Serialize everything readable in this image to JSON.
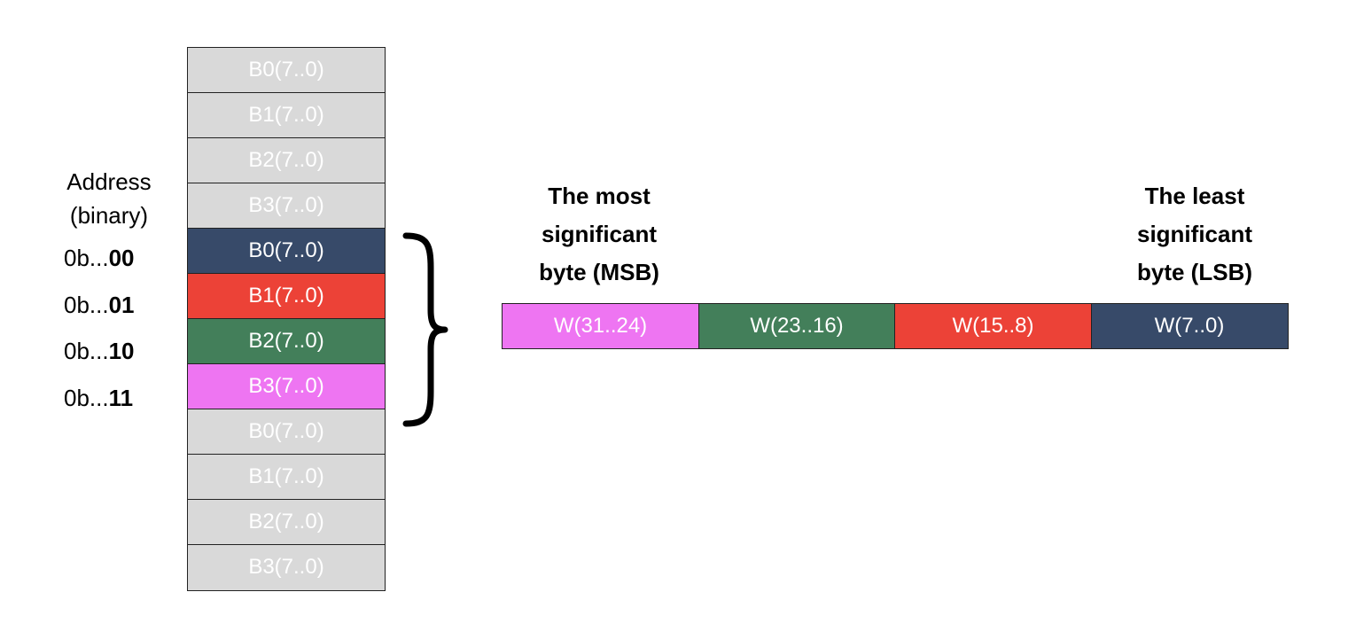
{
  "address": {
    "header_line1": "Address",
    "header_line2": "(binary)",
    "rows": [
      {
        "prefix": "0b...",
        "bits": "00"
      },
      {
        "prefix": "0b...",
        "bits": "01"
      },
      {
        "prefix": "0b...",
        "bits": "10"
      },
      {
        "prefix": "0b...",
        "bits": "11"
      }
    ]
  },
  "memory": {
    "cells": [
      {
        "label": "B0(7..0)",
        "color": "#d9d9d9"
      },
      {
        "label": "B1(7..0)",
        "color": "#d9d9d9"
      },
      {
        "label": "B2(7..0)",
        "color": "#d9d9d9"
      },
      {
        "label": "B3(7..0)",
        "color": "#d9d9d9"
      },
      {
        "label": "B0(7..0)",
        "color": "#374a69"
      },
      {
        "label": "B1(7..0)",
        "color": "#ec4237"
      },
      {
        "label": "B2(7..0)",
        "color": "#437f5a"
      },
      {
        "label": "B3(7..0)",
        "color": "#ee75f2"
      },
      {
        "label": "B0(7..0)",
        "color": "#d9d9d9"
      },
      {
        "label": "B1(7..0)",
        "color": "#d9d9d9"
      },
      {
        "label": "B2(7..0)",
        "color": "#d9d9d9"
      },
      {
        "label": "B3(7..0)",
        "color": "#d9d9d9"
      }
    ]
  },
  "word": {
    "cells": [
      {
        "label": "W(31..24)",
        "color": "#ee75f2"
      },
      {
        "label": "W(23..16)",
        "color": "#437f5a"
      },
      {
        "label": "W(15..8)",
        "color": "#ec4237"
      },
      {
        "label": "W(7..0)",
        "color": "#374a69"
      }
    ],
    "msb": {
      "line1": "The most",
      "line2": "significant",
      "line3": "byte (MSB)"
    },
    "lsb": {
      "line1": "The least",
      "line2": "significant",
      "line3": "byte (LSB)"
    }
  }
}
